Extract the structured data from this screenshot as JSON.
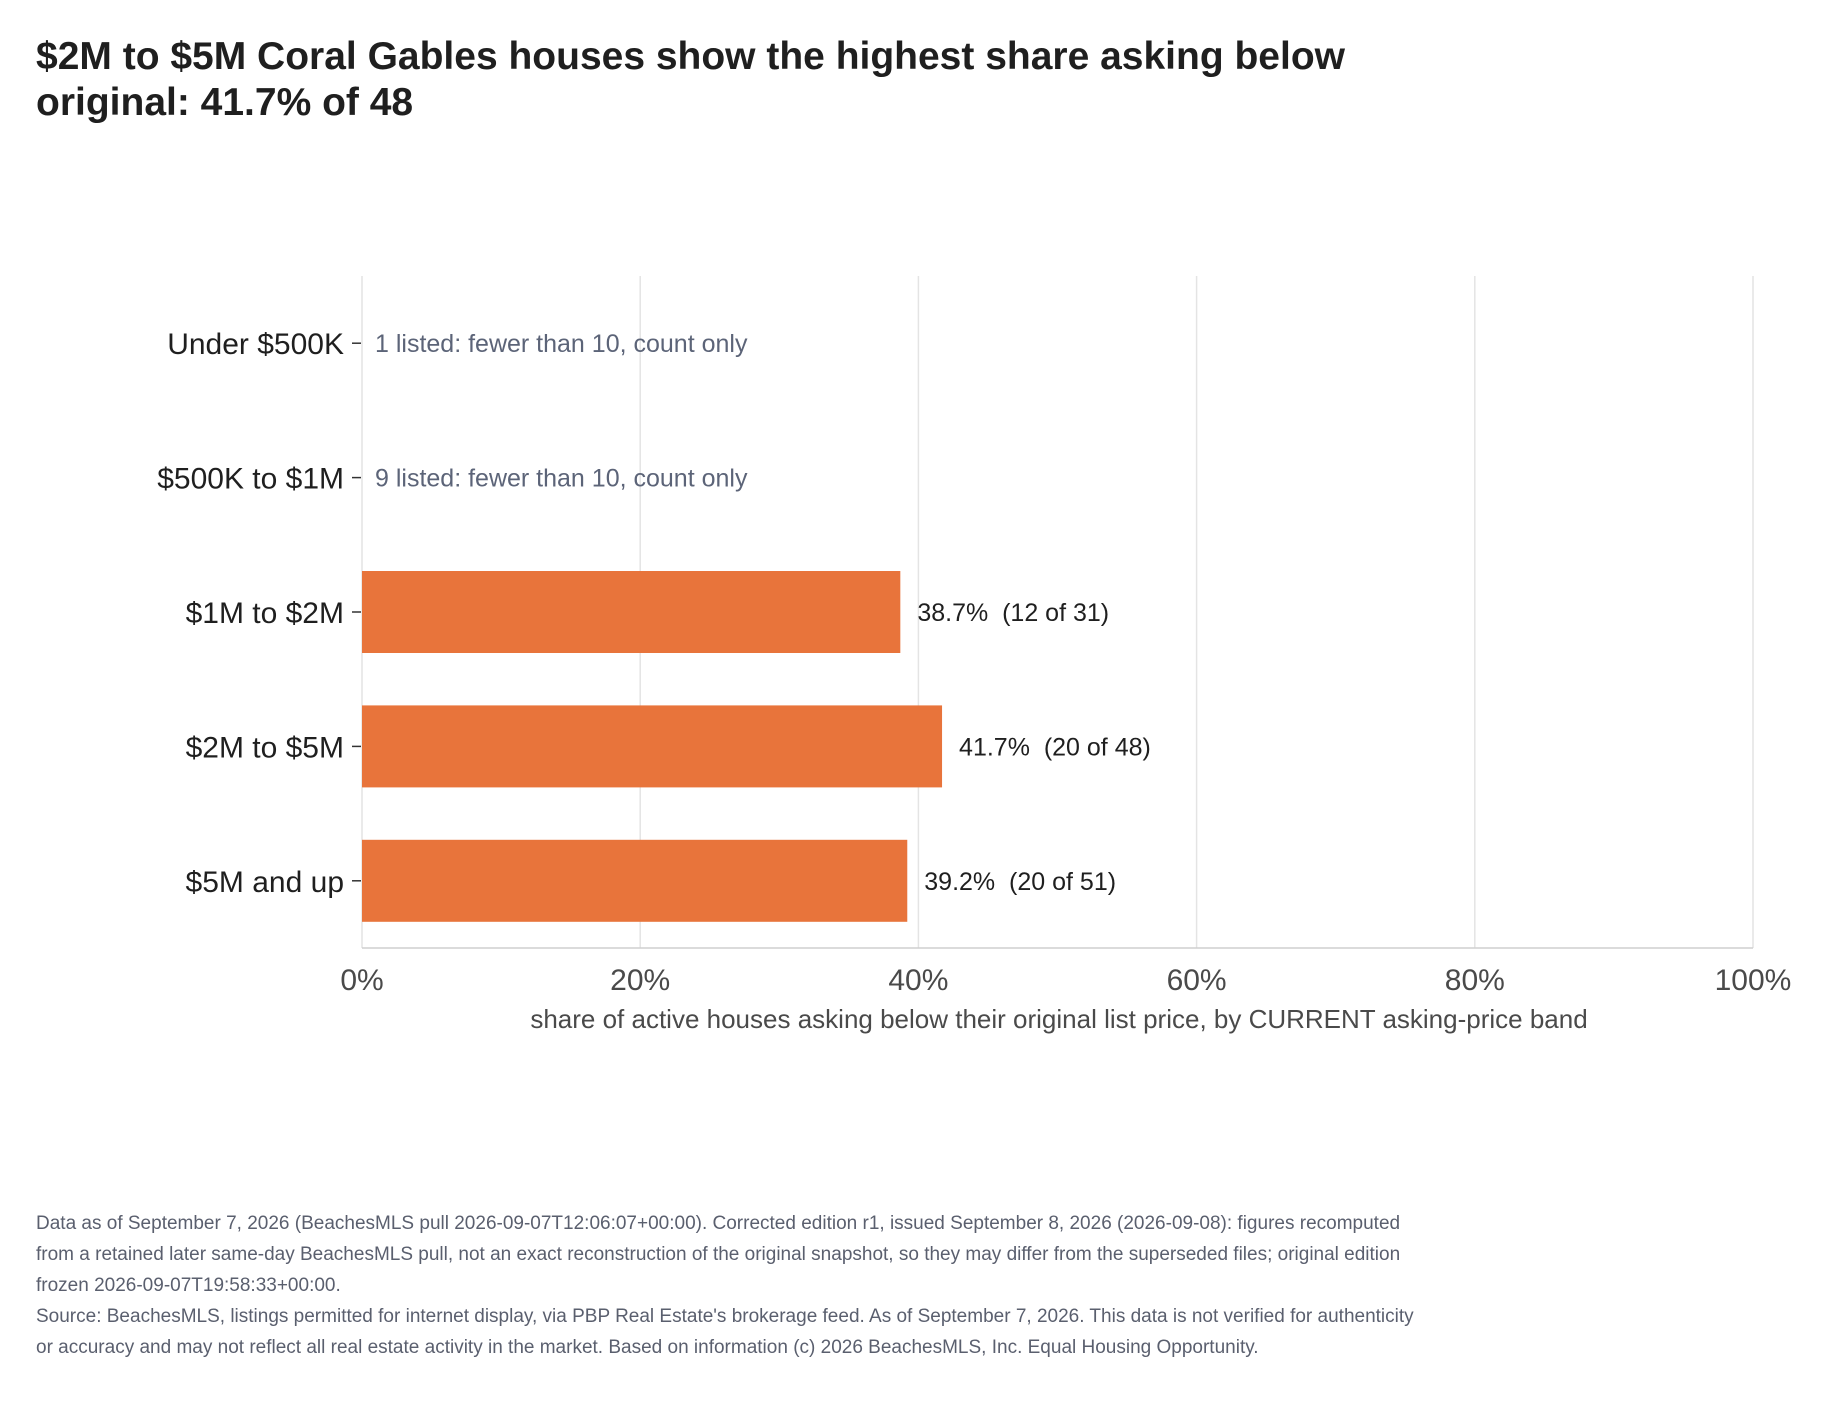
{
  "title": "$2M to $5M Coral Gables houses show the highest share asking below original: 41.7% of 48",
  "footnote": {
    "data_note": "Data as of September 7, 2026 (BeachesMLS pull 2026-09-07T12:06:07+00:00). Corrected edition r1, issued September 8, 2026 (2026-09-08): figures recomputed from a retained later same-day BeachesMLS pull, not an exact reconstruction of the original snapshot, so they may differ from the superseded files; original edition frozen 2026-09-07T19:58:33+00:00.",
    "source": "Source: BeachesMLS, listings permitted for internet display, via PBP Real Estate's brokerage feed. As of September 7, 2026. This data is not verified for authenticity or accuracy and may not reflect all real estate activity in the market. Based on information (c) 2026 BeachesMLS, Inc. Equal Housing Opportunity."
  },
  "chart_data": {
    "type": "bar",
    "orientation": "horizontal",
    "categories": [
      "Under $500K",
      "$500K to $1M",
      "$1M to $2M",
      "$2M to $5M",
      "$5M and up"
    ],
    "values": [
      null,
      null,
      38.7,
      41.7,
      39.2
    ],
    "value_labels": [
      "",
      "",
      "38.7%",
      "41.7%",
      "39.2%"
    ],
    "count_labels": [
      "",
      "",
      "(12 of 31)",
      "(20 of 48)",
      "(20 of 51)"
    ],
    "notes": [
      "1 listed: fewer than 10, count only",
      "9 listed: fewer than 10, count only",
      "",
      "",
      ""
    ],
    "xlabel": "share of active houses asking below their original list price, by CURRENT asking-price band",
    "ylabel": "",
    "xlim": [
      0,
      100
    ],
    "xticks": [
      0,
      20,
      40,
      60,
      80,
      100
    ],
    "xtick_labels": [
      "0%",
      "20%",
      "40%",
      "60%",
      "80%",
      "100%"
    ],
    "grid": "vertical",
    "legend": "none",
    "bar_color": "#e8743b",
    "note_color": "#5c6478"
  }
}
